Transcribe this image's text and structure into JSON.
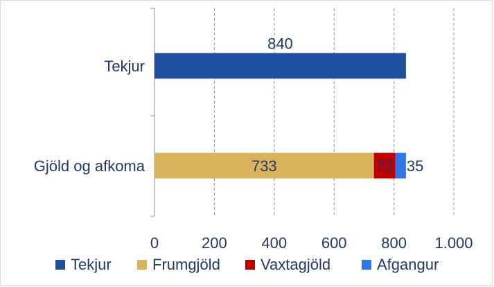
{
  "chart_data": {
    "type": "bar",
    "orientation": "horizontal",
    "stacked": true,
    "categories": [
      "Tekjur",
      "Gjöld og afkoma"
    ],
    "series": [
      {
        "name": "Tekjur",
        "color": "#1f4e9c",
        "values": [
          840,
          null
        ]
      },
      {
        "name": "Frumgjöld",
        "color": "#d9b35b",
        "values": [
          null,
          733
        ]
      },
      {
        "name": "Vaxtagjöld",
        "color": "#c00000",
        "values": [
          null,
          72
        ]
      },
      {
        "name": "Afgangur",
        "color": "#2e75e6",
        "values": [
          null,
          35
        ]
      }
    ],
    "data_labels": [
      {
        "category": "Tekjur",
        "series": "Tekjur",
        "text": "840"
      },
      {
        "category": "Gjöld og afkoma",
        "series": "Frumgjöld",
        "text": "733"
      },
      {
        "category": "Gjöld og afkoma",
        "series": "Vaxtagjöld",
        "text": "72"
      },
      {
        "category": "Gjöld og afkoma",
        "series": "Afgangur",
        "text": "35"
      }
    ],
    "xlim": [
      0,
      1000
    ],
    "x_ticks": [
      0,
      200,
      400,
      600,
      800,
      1000
    ],
    "x_tick_labels": [
      "0",
      "200",
      "400",
      "600",
      "800",
      "1.000"
    ],
    "grid": "vertical-dashed",
    "legend_position": "bottom",
    "title": "",
    "xlabel": "",
    "ylabel": ""
  }
}
